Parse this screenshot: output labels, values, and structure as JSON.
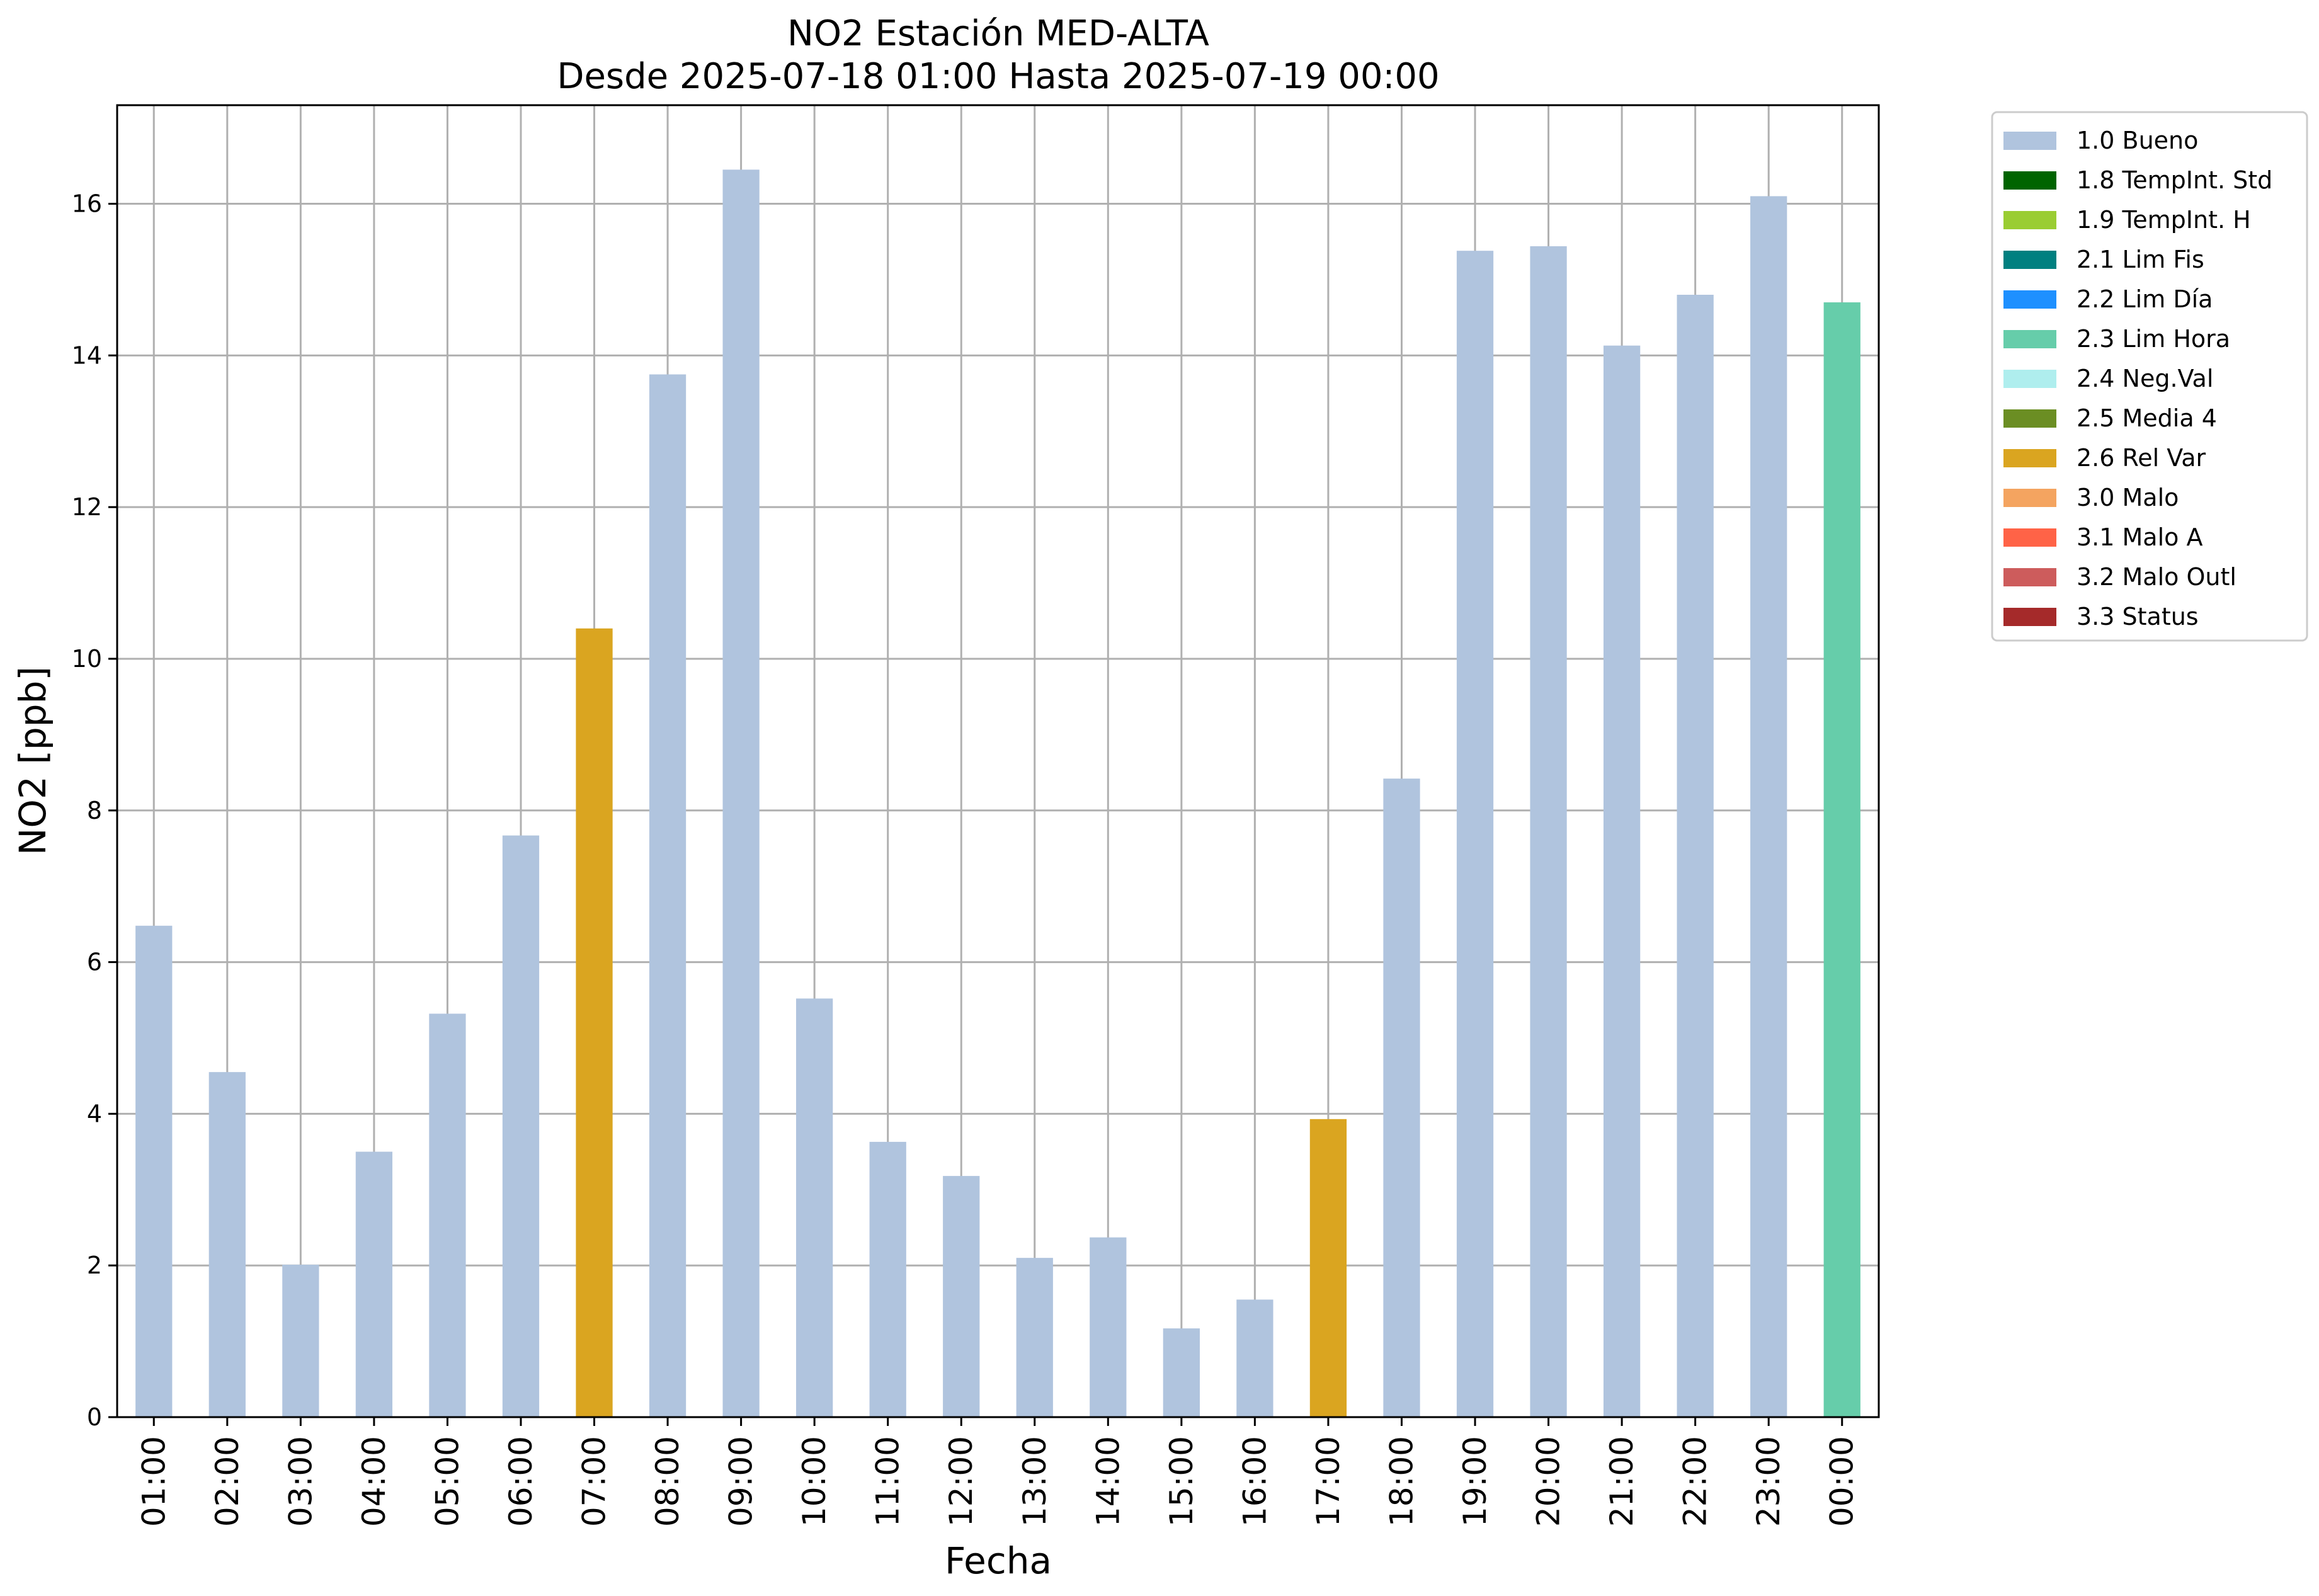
{
  "chart_data": {
    "type": "bar",
    "title": "NO2 Estación MED-ALTA",
    "subtitle": "Desde 2025-07-18 01:00 Hasta 2025-07-19 00:00",
    "xlabel": "Fecha",
    "ylabel": "NO2 [ppb]",
    "ylim": [
      0,
      17.3
    ],
    "yticks": [
      0,
      2,
      4,
      6,
      8,
      10,
      12,
      14,
      16
    ],
    "grid": true,
    "legend_position": "outside-right-top",
    "categories": [
      "01:00",
      "02:00",
      "03:00",
      "04:00",
      "05:00",
      "06:00",
      "07:00",
      "08:00",
      "09:00",
      "10:00",
      "11:00",
      "12:00",
      "13:00",
      "14:00",
      "15:00",
      "16:00",
      "17:00",
      "18:00",
      "19:00",
      "20:00",
      "21:00",
      "22:00",
      "23:00",
      "00:00"
    ],
    "values": [
      6.48,
      4.55,
      2.01,
      3.5,
      5.32,
      7.67,
      10.4,
      13.75,
      16.45,
      5.52,
      3.63,
      3.18,
      2.1,
      2.37,
      1.17,
      1.55,
      3.93,
      8.42,
      15.38,
      15.44,
      14.13,
      14.8,
      16.1,
      14.7
    ],
    "flags": [
      "1.0 Bueno",
      "1.0 Bueno",
      "1.0 Bueno",
      "1.0 Bueno",
      "1.0 Bueno",
      "1.0 Bueno",
      "2.6 Rel Var",
      "1.0 Bueno",
      "1.0 Bueno",
      "1.0 Bueno",
      "1.0 Bueno",
      "1.0 Bueno",
      "1.0 Bueno",
      "1.0 Bueno",
      "1.0 Bueno",
      "1.0 Bueno",
      "2.6 Rel Var",
      "1.0 Bueno",
      "1.0 Bueno",
      "1.0 Bueno",
      "1.0 Bueno",
      "1.0 Bueno",
      "1.0 Bueno",
      "2.3 Lim Hora"
    ],
    "legend": [
      {
        "label": "1.0 Bueno",
        "color": "#b0c4de"
      },
      {
        "label": "1.8 TempInt. Std",
        "color": "#006400"
      },
      {
        "label": "1.9 TempInt. H",
        "color": "#9acd32"
      },
      {
        "label": "2.1 Lim Fis",
        "color": "#008080"
      },
      {
        "label": "2.2 Lim Día",
        "color": "#1e90ff"
      },
      {
        "label": "2.3 Lim Hora",
        "color": "#66cdaa"
      },
      {
        "label": "2.4 Neg.Val",
        "color": "#afeeee"
      },
      {
        "label": "2.5 Media 4",
        "color": "#6b8e23"
      },
      {
        "label": "2.6 Rel Var",
        "color": "#daa520"
      },
      {
        "label": "3.0 Malo",
        "color": "#f4a460"
      },
      {
        "label": "3.1 Malo A",
        "color": "#ff6347"
      },
      {
        "label": "3.2 Malo Outl",
        "color": "#cd5c5c"
      },
      {
        "label": "3.3 Status",
        "color": "#a52a2a"
      }
    ]
  }
}
